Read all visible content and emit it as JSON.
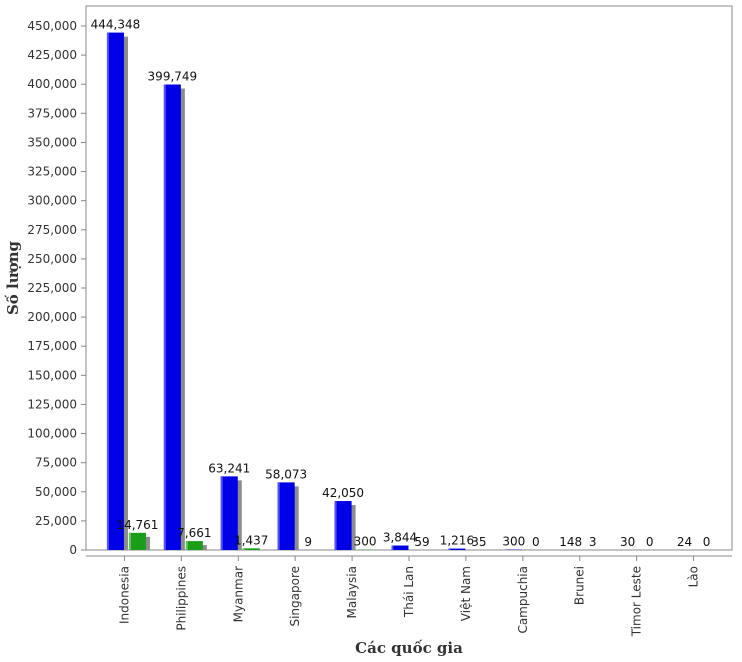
{
  "chart_data": {
    "type": "bar",
    "xlabel": "Các quốc gia",
    "ylabel": "Số lượng",
    "ylim": [
      0,
      450000
    ],
    "ytick_step": 25000,
    "grid": false,
    "categories": [
      "Indonesia",
      "Philippines",
      "Myanmar",
      "Singapore",
      "Malaysia",
      "Thái Lan",
      "Việt Nam",
      "Campuchia",
      "Brunei",
      "Timor Leste",
      "Lào"
    ],
    "series": [
      {
        "values": [
          444348,
          399749,
          63241,
          58073,
          42050,
          3844,
          1216,
          300,
          148,
          30,
          24
        ],
        "color": "#0000e6"
      },
      {
        "values": [
          14761,
          7661,
          1437,
          9,
          300,
          59,
          35,
          0,
          3,
          0,
          0
        ],
        "color": "#1a9e1a"
      }
    ]
  }
}
